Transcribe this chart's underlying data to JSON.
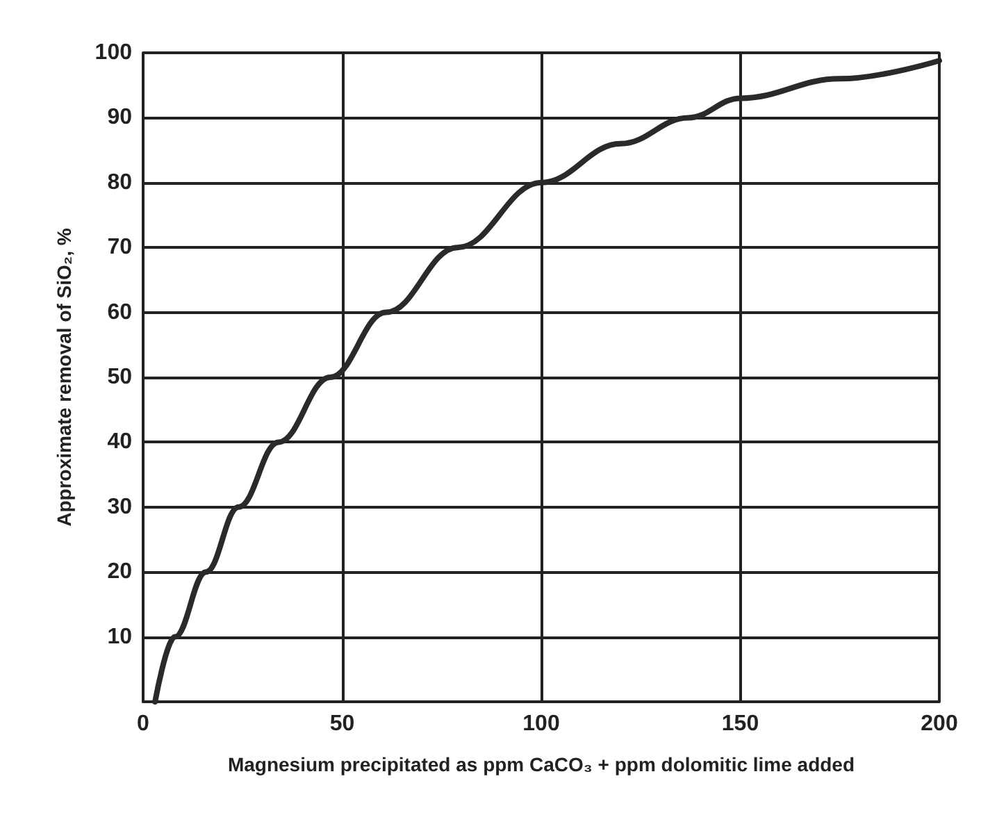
{
  "chart_data": {
    "type": "line",
    "xlabel": "Magnesium precipitated as ppm CaCO₃ + ppm dolomitic lime added",
    "ylabel": "Approximate removal of SiO₂, %",
    "x": [
      3,
      8,
      15.8,
      24,
      34,
      47,
      61,
      79,
      100,
      120,
      137,
      150,
      175,
      200
    ],
    "series": [
      {
        "color": "#2a2a2a",
        "values": [
          0,
          10,
          20,
          30,
          40,
          50,
          60,
          70,
          80,
          86,
          90,
          93,
          96,
          98.8
        ]
      }
    ],
    "xlim": [
      0,
      200
    ],
    "xticks": [
      0,
      50,
      100,
      150,
      200
    ],
    "ylim": [
      0,
      100
    ],
    "yticks": [
      10,
      20,
      30,
      40,
      50,
      60,
      70,
      80,
      90,
      100
    ],
    "grid": true,
    "marker": "none",
    "line_style": "solid"
  }
}
